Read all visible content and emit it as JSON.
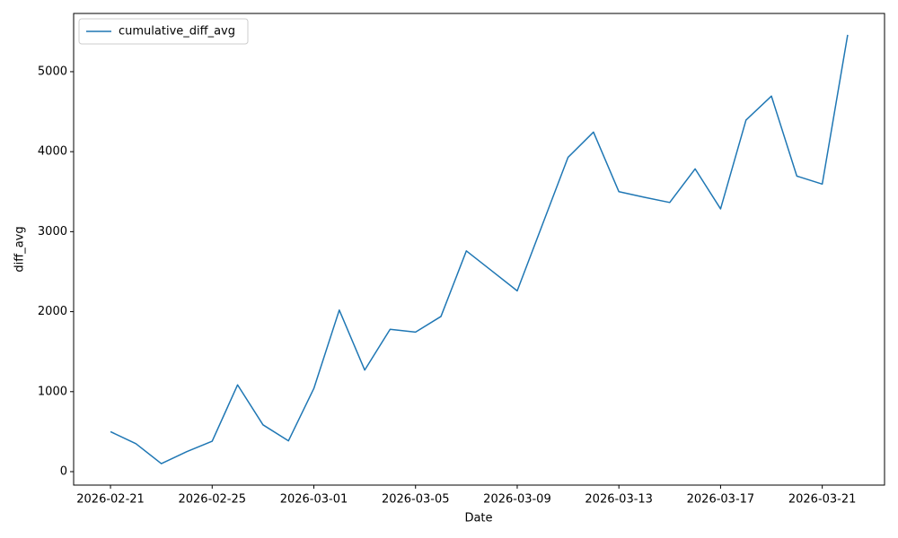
{
  "chart_data": {
    "type": "line",
    "x": [
      "2026-02-21",
      "2026-02-22",
      "2026-02-23",
      "2026-02-24",
      "2026-02-25",
      "2026-02-26",
      "2026-02-27",
      "2026-02-28",
      "2026-03-01",
      "2026-03-02",
      "2026-03-03",
      "2026-03-04",
      "2026-03-05",
      "2026-03-06",
      "2026-03-07",
      "2026-03-08",
      "2026-03-09",
      "2026-03-10",
      "2026-03-11",
      "2026-03-12",
      "2026-03-13",
      "2026-03-14",
      "2026-03-15",
      "2026-03-16",
      "2026-03-17",
      "2026-03-18",
      "2026-03-19",
      "2026-03-20",
      "2026-03-21",
      "2026-03-22"
    ],
    "series": [
      {
        "name": "cumulative_diff_avg",
        "color": "#1f77b4",
        "values": [
          500,
          350,
          100,
          250,
          380,
          1085,
          585,
          385,
          1040,
          2020,
          1270,
          1780,
          1745,
          1940,
          2760,
          2510,
          2260,
          3095,
          3930,
          4245,
          3500,
          3430,
          3365,
          3785,
          3285,
          4395,
          4695,
          3695,
          3595,
          5460
        ]
      }
    ],
    "xlabel": "Date",
    "ylabel": "diff_avg",
    "xlim": [
      "2026-02-19T13:12",
      "2026-03-23T10:48"
    ],
    "xticks": [
      "2026-02-21",
      "2026-02-25",
      "2026-03-01",
      "2026-03-05",
      "2026-03-09",
      "2026-03-13",
      "2026-03-17",
      "2026-03-21"
    ],
    "ylim": [
      -168,
      5728
    ],
    "yticks": [
      0,
      1000,
      2000,
      3000,
      4000,
      5000
    ],
    "legend": "upper left"
  }
}
